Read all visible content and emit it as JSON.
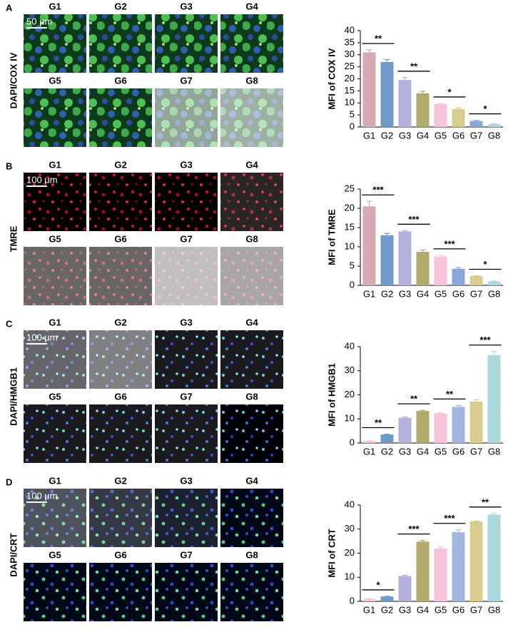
{
  "figure": {
    "panels": [
      {
        "letter": "A",
        "stain": "DAPI/COX IV",
        "scale": "50 μm",
        "groups": [
          "G1",
          "G2",
          "G3",
          "G4",
          "G5",
          "G6",
          "G7",
          "G8"
        ]
      },
      {
        "letter": "B",
        "stain": "TMRE",
        "scale": "100 μm",
        "groups": [
          "G1",
          "G2",
          "G3",
          "G4",
          "G5",
          "G6",
          "G7",
          "G8"
        ]
      },
      {
        "letter": "C",
        "stain": "DAPI/HMGB1",
        "scale": "100 μm",
        "groups": [
          "G1",
          "G2",
          "G3",
          "G4",
          "G5",
          "G6",
          "G7",
          "G8"
        ]
      },
      {
        "letter": "D",
        "stain": "DAPI/CRT",
        "scale": "100 μm",
        "groups": [
          "G1",
          "G2",
          "G3",
          "G4",
          "G5",
          "G6",
          "G7",
          "G8"
        ]
      }
    ]
  },
  "chart_data": [
    {
      "type": "bar",
      "y_label": "MFI of COX IV",
      "categories": [
        "G1",
        "G2",
        "G3",
        "G4",
        "G5",
        "G6",
        "G7",
        "G8"
      ],
      "values": [
        31,
        27,
        19.5,
        14,
        9.5,
        7.5,
        2.5,
        1.2
      ],
      "errors": [
        1,
        1,
        1,
        0.8,
        0.3,
        0.5,
        0.3,
        0.2
      ],
      "colors": [
        "#d6a9b4",
        "#6f9bc8",
        "#b3b0dc",
        "#b2aa6c",
        "#f7c3da",
        "#d8cc8e",
        "#8aa6d6",
        "#a9d9dd"
      ],
      "ylim": [
        0,
        40
      ],
      "yticks": [
        0,
        5,
        10,
        15,
        20,
        25,
        30,
        35,
        40
      ],
      "significance": [
        "**",
        "**",
        "*",
        "*"
      ]
    },
    {
      "type": "bar",
      "y_label": "MFI of TMRE",
      "categories": [
        "G1",
        "G2",
        "G3",
        "G4",
        "G5",
        "G6",
        "G7",
        "G8"
      ],
      "values": [
        20.5,
        13,
        14,
        8.7,
        7.5,
        4.3,
        2.4,
        1
      ],
      "errors": [
        1.3,
        0.5,
        0.2,
        0.5,
        0.3,
        0.3,
        0.1,
        0.1
      ],
      "colors": [
        "#d6a9b4",
        "#6f9bc8",
        "#b3b0dc",
        "#b2aa6c",
        "#f7c3da",
        "#8aa6d6",
        "#d8cc8e",
        "#a9d9dd"
      ],
      "ylim": [
        0,
        25
      ],
      "yticks": [
        0,
        5,
        10,
        15,
        20,
        25
      ],
      "significance": [
        "***",
        "***",
        "***",
        "*"
      ]
    },
    {
      "type": "bar",
      "y_label": "MFI of HMGB1",
      "categories": [
        "G1",
        "G2",
        "G3",
        "G4",
        "G5",
        "G6",
        "G7",
        "G8"
      ],
      "values": [
        0.8,
        3.5,
        10.5,
        13.3,
        12.3,
        15,
        17.2,
        36.5
      ],
      "errors": [
        0.1,
        0.2,
        0.3,
        0.3,
        0.2,
        0.6,
        0.8,
        1.5
      ],
      "colors": [
        "#f7c3da",
        "#6f9bc8",
        "#b3b0dc",
        "#b2aa6c",
        "#f7c3da",
        "#a3b4de",
        "#d8cc8e",
        "#a9d9dd"
      ],
      "ylim": [
        0,
        40
      ],
      "yticks": [
        0,
        10,
        20,
        30,
        40
      ],
      "significance": [
        "**",
        "**",
        "**",
        "***"
      ]
    },
    {
      "type": "bar",
      "y_label": "MFI of CRT",
      "categories": [
        "G1",
        "G2",
        "G3",
        "G4",
        "G5",
        "G6",
        "G7",
        "G8"
      ],
      "values": [
        1,
        2,
        10.5,
        24.8,
        22,
        28.7,
        33.2,
        36
      ],
      "errors": [
        0.1,
        0.1,
        0.3,
        0.5,
        0.7,
        1,
        0.2,
        0.5
      ],
      "colors": [
        "#f7c3da",
        "#6f9bc8",
        "#b3b0dc",
        "#b2aa6c",
        "#f7c3da",
        "#a3b4de",
        "#d8cc8e",
        "#a9d9dd"
      ],
      "ylim": [
        0,
        40
      ],
      "yticks": [
        0,
        10,
        20,
        30,
        40
      ],
      "significance": [
        "*",
        "***",
        "***",
        "**"
      ]
    }
  ]
}
